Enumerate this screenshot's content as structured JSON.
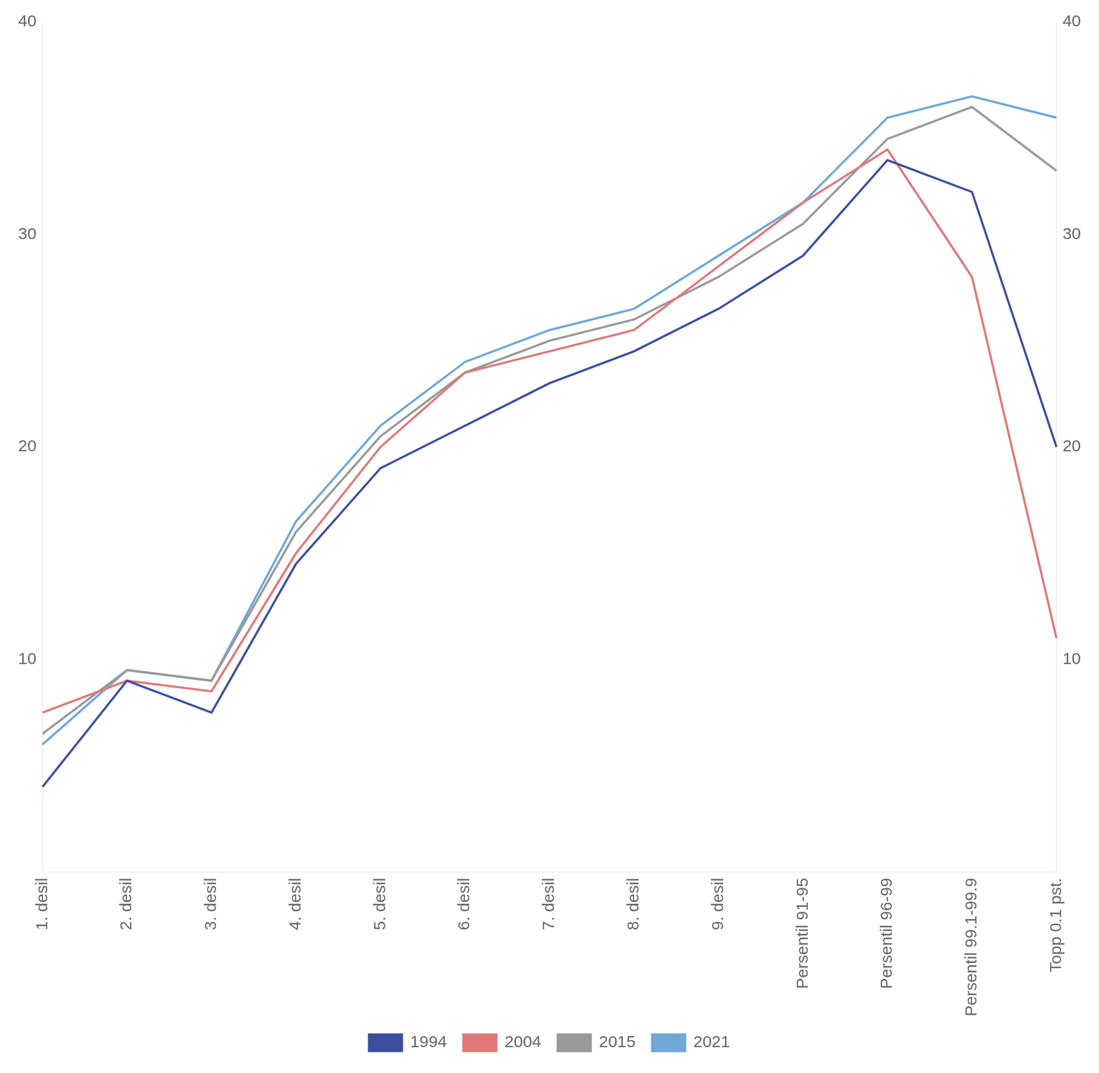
{
  "chart_data": {
    "type": "line",
    "categories": [
      "1. desil",
      "2. desil",
      "3. desil",
      "4. desil",
      "5. desil",
      "6. desil",
      "7. desil",
      "8. desil",
      "9. desil",
      "Persentil 91-95",
      "Persentil 96-99",
      "Persentil 99.1-99.9",
      "Topp 0.1 pst."
    ],
    "series": [
      {
        "name": "1994",
        "color": "#3C4FA0",
        "values": [
          4.0,
          9.0,
          7.5,
          14.5,
          19.0,
          21.0,
          23.0,
          24.5,
          26.5,
          29.0,
          33.5,
          32.0,
          20.0
        ]
      },
      {
        "name": "2004",
        "color": "#E07878",
        "values": [
          7.5,
          9.0,
          8.5,
          15.0,
          20.0,
          23.5,
          24.5,
          25.5,
          28.5,
          31.5,
          34.0,
          28.0,
          11.0
        ]
      },
      {
        "name": "2015",
        "color": "#999999",
        "values": [
          6.5,
          9.5,
          9.0,
          16.0,
          20.5,
          23.5,
          25.0,
          26.0,
          28.0,
          30.5,
          34.5,
          36.0,
          33.0
        ]
      },
      {
        "name": "2021",
        "color": "#6FA8D8",
        "values": [
          6.0,
          9.5,
          9.0,
          16.5,
          21.0,
          24.0,
          25.5,
          26.5,
          29.0,
          31.5,
          35.5,
          36.5,
          35.5
        ]
      }
    ],
    "ylim": [
      0,
      40
    ],
    "yticks": [
      10,
      20,
      30,
      40
    ],
    "y2lim": [
      0,
      40
    ],
    "y2ticks": [
      10,
      20,
      30,
      40
    ],
    "grid": false,
    "legend": "bottom"
  }
}
